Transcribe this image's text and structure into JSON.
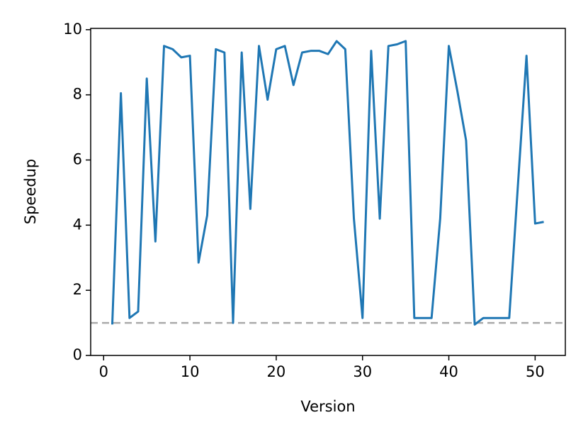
{
  "chart_data": {
    "type": "line",
    "x_label": "Version",
    "y_label": "Speedup",
    "x": [
      1,
      2,
      3,
      4,
      5,
      6,
      7,
      8,
      9,
      10,
      11,
      12,
      13,
      14,
      15,
      16,
      17,
      18,
      19,
      20,
      21,
      22,
      23,
      24,
      25,
      26,
      27,
      28,
      29,
      30,
      31,
      32,
      33,
      34,
      35,
      36,
      37,
      38,
      39,
      40,
      41,
      42,
      43,
      44,
      45,
      46,
      47,
      48,
      49,
      50,
      51
    ],
    "series": [
      {
        "name": "Speedup",
        "color": "#1f77b4",
        "values": [
          0.95,
          8.05,
          1.15,
          1.35,
          8.5,
          3.5,
          9.5,
          9.4,
          9.15,
          9.2,
          2.85,
          4.3,
          9.4,
          9.3,
          1.0,
          9.3,
          4.5,
          9.5,
          7.85,
          9.4,
          9.5,
          8.3,
          9.3,
          9.35,
          9.35,
          9.25,
          9.65,
          9.4,
          4.2,
          1.15,
          9.35,
          4.2,
          9.5,
          9.55,
          9.65,
          1.15,
          1.15,
          1.15,
          4.2,
          9.5,
          8.1,
          6.6,
          0.95,
          1.15,
          1.15,
          1.15,
          1.15,
          5.2,
          9.2,
          4.05,
          4.1
        ]
      }
    ],
    "reference_line": {
      "y": 1,
      "color": "#aaaaaa"
    },
    "xlim": [
      -1.5,
      53.5
    ],
    "xticks": [
      0,
      10,
      20,
      30,
      40,
      50
    ],
    "ylim": [
      0,
      10.04
    ],
    "yticks": [
      0,
      2,
      4,
      6,
      8,
      10
    ]
  }
}
